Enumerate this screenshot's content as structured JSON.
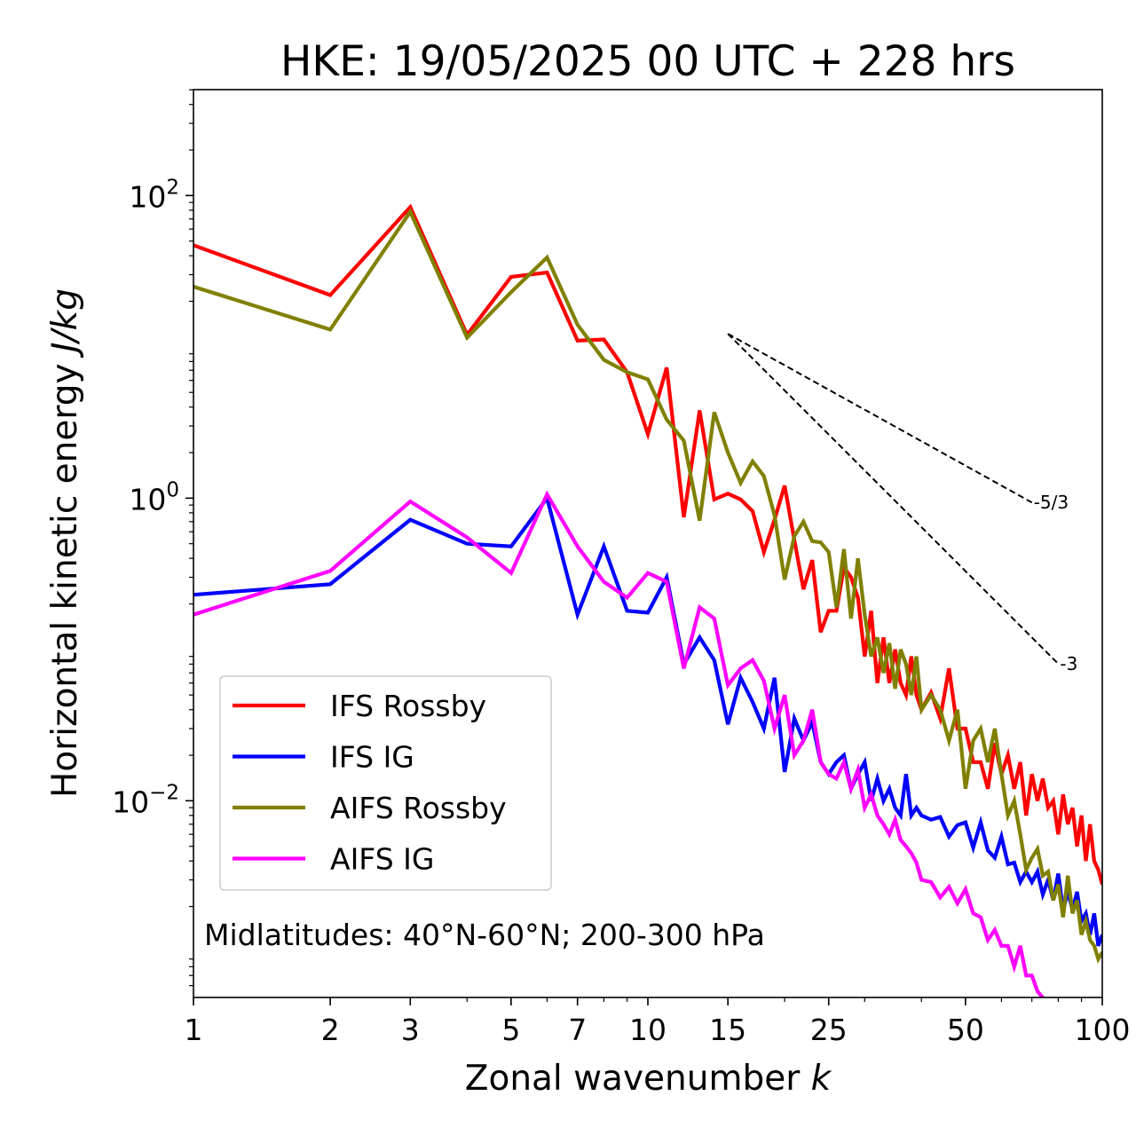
{
  "chart_data": {
    "type": "line",
    "title": "HKE: 19/05/2025 00 UTC + 228 hrs",
    "xlabel": "Zonal wavenumber",
    "xlabel_var": "k",
    "ylabel": "Horizontal kinetic energy",
    "ylabel_unit": "J/kg",
    "x_scale": "log",
    "y_scale": "log",
    "xlim": [
      1,
      100
    ],
    "ylim_log10": [
      -3.3,
      2.7
    ],
    "x_ticks": [
      {
        "value": 1,
        "label": "1"
      },
      {
        "value": 2,
        "label": "2"
      },
      {
        "value": 3,
        "label": "3"
      },
      {
        "value": 5,
        "label": "5"
      },
      {
        "value": 7,
        "label": "7"
      },
      {
        "value": 10,
        "label": "10"
      },
      {
        "value": 15,
        "label": "15"
      },
      {
        "value": 25,
        "label": "25"
      },
      {
        "value": 50,
        "label": "50"
      },
      {
        "value": 100,
        "label": "100"
      }
    ],
    "y_ticks": [
      {
        "value": 100,
        "base": "10",
        "exp": "2"
      },
      {
        "value": 1,
        "base": "10",
        "exp": "0"
      },
      {
        "value": 0.01,
        "base": "10",
        "exp": "−2"
      }
    ],
    "grid": false,
    "legend_position": "lower-left",
    "annotation": "Midlatitudes: 40°N-60°N; 200-300 hPa",
    "reference_slopes": [
      {
        "label": "-5/3",
        "slope": -1.6667,
        "x_start": 15,
        "x_end": 70,
        "y_start": 12.2
      },
      {
        "label": "-3",
        "slope": -3,
        "x_start": 15,
        "x_end": 80,
        "y_start": 12.2
      }
    ],
    "series": [
      {
        "name": "IFS Rossby",
        "color": "#ff0000",
        "x": [
          1,
          2,
          3,
          4,
          5,
          6,
          7,
          8,
          9,
          10,
          11,
          12,
          13,
          14,
          15,
          16,
          17,
          18,
          19,
          20,
          21,
          22,
          23,
          24,
          25,
          26,
          27,
          28,
          29,
          30,
          31,
          32,
          33,
          34,
          35,
          36,
          37,
          38,
          39,
          40,
          42,
          44,
          46,
          48,
          50,
          52,
          54,
          56,
          58,
          60,
          62,
          64,
          66,
          68,
          70,
          72,
          74,
          76,
          78,
          80,
          82,
          84,
          86,
          88,
          90,
          92,
          94,
          96,
          98,
          100
        ],
        "y": [
          47,
          22,
          84,
          12,
          29,
          31,
          11,
          11.2,
          6.8,
          2.65,
          7.3,
          0.75,
          3.8,
          0.98,
          1.07,
          0.98,
          0.82,
          0.44,
          0.72,
          1.21,
          0.53,
          0.25,
          0.39,
          0.13,
          0.18,
          0.18,
          0.35,
          0.3,
          0.22,
          0.09,
          0.18,
          0.06,
          0.12,
          0.06,
          0.1,
          0.06,
          0.05,
          0.09,
          0.05,
          0.04,
          0.052,
          0.035,
          0.075,
          0.03,
          0.03,
          0.018,
          0.018,
          0.012,
          0.024,
          0.015,
          0.02,
          0.012,
          0.018,
          0.008,
          0.015,
          0.01,
          0.014,
          0.009,
          0.01,
          0.006,
          0.011,
          0.007,
          0.009,
          0.005,
          0.008,
          0.004,
          0.007,
          0.004,
          0.0035,
          0.0028
        ]
      },
      {
        "name": "IFS IG",
        "color": "#0000ff",
        "x": [
          1,
          2,
          3,
          4,
          5,
          6,
          7,
          8,
          9,
          10,
          11,
          12,
          13,
          14,
          15,
          16,
          17,
          18,
          19,
          20,
          21,
          22,
          23,
          24,
          25,
          26,
          27,
          28,
          29,
          30,
          31,
          32,
          33,
          34,
          35,
          36,
          37,
          38,
          39,
          40,
          42,
          44,
          46,
          48,
          50,
          52,
          54,
          56,
          58,
          60,
          62,
          64,
          66,
          68,
          70,
          72,
          74,
          76,
          78,
          80,
          82,
          84,
          86,
          88,
          90,
          92,
          94,
          96,
          98,
          100
        ],
        "y": [
          0.23,
          0.27,
          0.72,
          0.5,
          0.48,
          1.0,
          0.17,
          0.48,
          0.18,
          0.175,
          0.3,
          0.08,
          0.12,
          0.085,
          0.032,
          0.065,
          0.045,
          0.03,
          0.065,
          0.0155,
          0.035,
          0.025,
          0.033,
          0.018,
          0.015,
          0.018,
          0.02,
          0.012,
          0.015,
          0.018,
          0.01,
          0.014,
          0.01,
          0.012,
          0.009,
          0.008,
          0.015,
          0.008,
          0.009,
          0.008,
          0.0075,
          0.0078,
          0.0058,
          0.0069,
          0.0072,
          0.0049,
          0.0072,
          0.0047,
          0.0042,
          0.0058,
          0.0038,
          0.0039,
          0.0029,
          0.0034,
          0.0029,
          0.0034,
          0.0024,
          0.003,
          0.0022,
          0.0033,
          0.0019,
          0.0025,
          0.0019,
          0.0025,
          0.0016,
          0.0018,
          0.0013,
          0.0018,
          0.0011,
          0.0013
        ]
      },
      {
        "name": "AIFS Rossby",
        "color": "#808000",
        "x": [
          1,
          2,
          3,
          4,
          5,
          6,
          7,
          8,
          9,
          10,
          11,
          12,
          13,
          14,
          15,
          16,
          17,
          18,
          19,
          20,
          21,
          22,
          23,
          24,
          25,
          26,
          27,
          28,
          29,
          30,
          31,
          32,
          33,
          34,
          35,
          36,
          37,
          38,
          39,
          40,
          42,
          44,
          46,
          48,
          50,
          52,
          54,
          56,
          58,
          60,
          62,
          64,
          66,
          68,
          70,
          72,
          74,
          76,
          78,
          80,
          82,
          84,
          86,
          88,
          90,
          92,
          94,
          96,
          98,
          100
        ],
        "y": [
          25,
          13,
          78,
          11.5,
          23,
          39,
          14,
          8.2,
          6.8,
          6.1,
          3.3,
          2.4,
          0.71,
          3.7,
          2.0,
          1.26,
          1.75,
          1.4,
          0.77,
          0.29,
          0.56,
          0.7,
          0.52,
          0.51,
          0.44,
          0.19,
          0.46,
          0.16,
          0.4,
          0.17,
          0.09,
          0.12,
          0.07,
          0.11,
          0.055,
          0.1,
          0.08,
          0.05,
          0.09,
          0.04,
          0.05,
          0.04,
          0.025,
          0.04,
          0.012,
          0.025,
          0.03,
          0.018,
          0.03,
          0.015,
          0.008,
          0.01,
          0.006,
          0.0035,
          0.0042,
          0.0048,
          0.0032,
          0.0034,
          0.0022,
          0.0028,
          0.0017,
          0.0032,
          0.0018,
          0.0022,
          0.0013,
          0.0016,
          0.0012,
          0.0011,
          0.0009,
          0.001
        ]
      },
      {
        "name": "AIFS IG",
        "color": "#ff00ff",
        "x": [
          1,
          2,
          3,
          4,
          5,
          6,
          7,
          8,
          9,
          10,
          11,
          12,
          13,
          14,
          15,
          16,
          17,
          18,
          19,
          20,
          21,
          22,
          23,
          24,
          25,
          26,
          27,
          28,
          29,
          30,
          31,
          32,
          33,
          34,
          35,
          36,
          37,
          38,
          39,
          40,
          42,
          44,
          46,
          48,
          50,
          52,
          54,
          56,
          58,
          60,
          62,
          64,
          66,
          68,
          70,
          72,
          74
        ],
        "y": [
          0.17,
          0.33,
          0.95,
          0.55,
          0.32,
          1.06,
          0.48,
          0.28,
          0.22,
          0.32,
          0.28,
          0.075,
          0.19,
          0.16,
          0.058,
          0.075,
          0.085,
          0.062,
          0.03,
          0.05,
          0.02,
          0.025,
          0.04,
          0.018,
          0.015,
          0.014,
          0.018,
          0.012,
          0.016,
          0.009,
          0.011,
          0.008,
          0.007,
          0.006,
          0.0075,
          0.0055,
          0.005,
          0.0045,
          0.0039,
          0.003,
          0.0029,
          0.0023,
          0.0027,
          0.0021,
          0.0026,
          0.0018,
          0.0017,
          0.0012,
          0.0014,
          0.0011,
          0.0011,
          0.0008,
          0.0011,
          0.0007,
          0.0007,
          0.00055,
          0.0005
        ]
      }
    ]
  }
}
